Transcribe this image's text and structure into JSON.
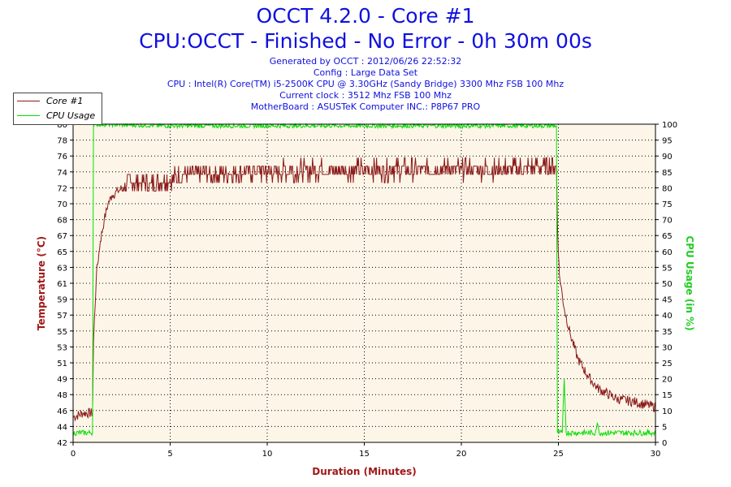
{
  "header": {
    "title": "OCCT 4.2.0 - Core #1",
    "subtitle": "CPU:OCCT - Finished - No Error - 0h 30m 00s",
    "generated": "Generated by OCCT : 2012/06/26 22:52:32",
    "config": "Config : Large Data Set",
    "cpu": "CPU : Intel(R) Core(TM) i5-2500K CPU @ 3.30GHz (Sandy Bridge) 3300 Mhz FSB 100 Mhz",
    "clock": "Current clock : 3512 Mhz FSB 100 Mhz",
    "motherboard": "MotherBoard : ASUSTeK Computer INC.: P8P67 PRO"
  },
  "colors": {
    "title": "#1010e0",
    "temperature": "#8b1a1a",
    "usage": "#00e000",
    "plot_background": "#fdf6e8",
    "axis_label_red": "#a01818",
    "axis_label_green": "#22cc22"
  },
  "chart_data": {
    "type": "line",
    "xlabel": "Duration (Minutes)",
    "ylabel": "Temperature (°C)",
    "y2label": "CPU Usage (in %)",
    "xlim": [
      0,
      30
    ],
    "ylim": [
      42,
      80
    ],
    "y2lim": [
      0,
      100
    ],
    "x_ticks": [
      "0",
      "5",
      "10",
      "15",
      "20",
      "25",
      "30"
    ],
    "y_ticks": [
      "42",
      "44",
      "46",
      "48",
      "49",
      "51",
      "53",
      "55",
      "57",
      "59",
      "61",
      "63",
      "65",
      "67",
      "68",
      "70",
      "72",
      "74",
      "76",
      "78",
      "80"
    ],
    "y2_ticks": [
      "0",
      "5",
      "10",
      "15",
      "20",
      "25",
      "30",
      "35",
      "40",
      "45",
      "50",
      "55",
      "60",
      "65",
      "70",
      "75",
      "80",
      "85",
      "90",
      "95",
      "100"
    ],
    "grid": true,
    "legend_position": "top-left",
    "series": [
      {
        "name": "Core #1",
        "axis": "left",
        "points": [
          [
            0,
            45
          ],
          [
            0.5,
            45.5
          ],
          [
            1.0,
            45.5
          ],
          [
            1.05,
            54
          ],
          [
            1.2,
            62
          ],
          [
            1.4,
            66
          ],
          [
            1.6,
            68.5
          ],
          [
            1.8,
            70.5
          ],
          [
            2.0,
            71.5
          ],
          [
            2.3,
            72
          ],
          [
            2.6,
            72.5
          ],
          [
            3.0,
            73
          ],
          [
            3.5,
            73
          ],
          [
            4.0,
            73
          ],
          [
            5.0,
            73.5
          ],
          [
            6.0,
            74
          ],
          [
            7.0,
            74
          ],
          [
            8.0,
            74.2
          ],
          [
            10.0,
            74.4
          ],
          [
            12.0,
            74.5
          ],
          [
            15.0,
            74.6
          ],
          [
            18.0,
            74.6
          ],
          [
            20.0,
            74.6
          ],
          [
            22.0,
            74.6
          ],
          [
            24.0,
            74.8
          ],
          [
            24.9,
            75
          ],
          [
            24.95,
            68
          ],
          [
            25.05,
            62
          ],
          [
            25.3,
            58
          ],
          [
            25.6,
            55
          ],
          [
            26.0,
            52
          ],
          [
            26.5,
            50
          ],
          [
            27.0,
            48.5
          ],
          [
            28.0,
            47.2
          ],
          [
            29.0,
            46.8
          ],
          [
            30.0,
            46.2
          ]
        ]
      },
      {
        "name": "CPU Usage",
        "axis": "right",
        "points": [
          [
            0,
            3
          ],
          [
            0.9,
            3
          ],
          [
            1.0,
            3
          ],
          [
            1.05,
            100
          ],
          [
            5.0,
            99.5
          ],
          [
            10.0,
            99.5
          ],
          [
            15.0,
            99.5
          ],
          [
            20.0,
            99.5
          ],
          [
            24.9,
            99.5
          ],
          [
            24.95,
            3
          ],
          [
            25.2,
            3
          ],
          [
            25.3,
            20
          ],
          [
            25.4,
            3
          ],
          [
            26.9,
            3
          ],
          [
            27.0,
            6
          ],
          [
            27.1,
            3
          ],
          [
            30.0,
            3
          ]
        ]
      }
    ]
  }
}
